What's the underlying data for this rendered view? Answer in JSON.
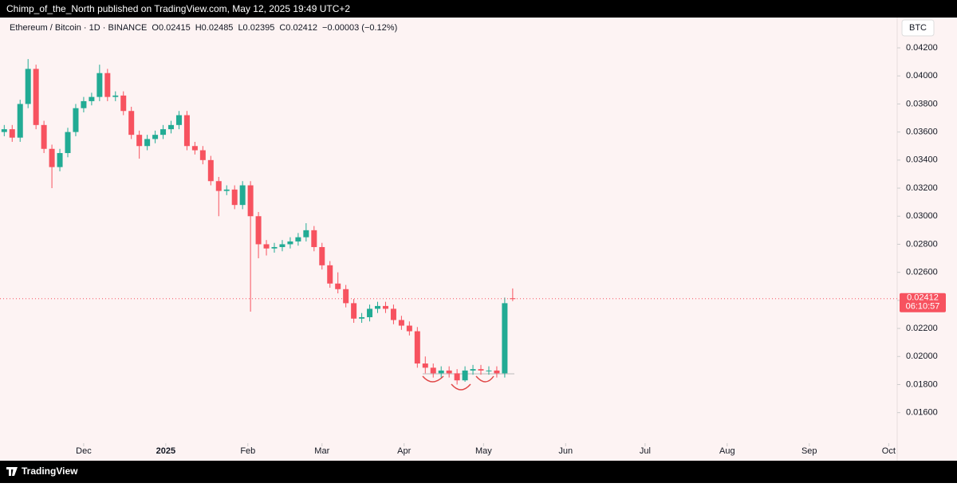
{
  "publish_note": "Chimp_of_the_North published on TradingView.com, May 12, 2025 19:49 UTC+2",
  "footer": "TradingView",
  "chart_data": {
    "type": "candlestick",
    "symbol": "Ethereum / Bitcoin · 1D · BINANCE",
    "ohlc_header": [
      "O0.02415",
      "H0.02485",
      "L0.02395",
      "C0.02412",
      "−0.00003 (−0.12%)"
    ],
    "currency": "BTC",
    "last_price": 0.02412,
    "countdown": "06:10:57",
    "up_color": "#22ab94",
    "down_color": "#f7525f",
    "x": [
      -30,
      -27,
      -24,
      -21,
      -18,
      -15,
      -12,
      -9,
      -6,
      -3,
      0,
      3,
      6,
      9,
      12,
      15,
      18,
      21,
      24,
      27,
      30,
      33,
      36,
      39,
      42,
      45,
      48,
      51,
      54,
      57,
      60,
      63,
      66,
      69,
      72,
      75,
      78,
      81,
      84,
      87,
      90,
      93,
      96,
      99,
      102,
      105,
      108,
      111,
      114,
      117,
      120,
      123,
      126,
      129,
      132,
      135,
      138,
      141,
      144,
      147,
      150,
      153,
      156,
      159,
      162
    ],
    "open": [
      0.036,
      0.0362,
      0.0356,
      0.038,
      0.0405,
      0.0365,
      0.0348,
      0.0335,
      0.0345,
      0.036,
      0.0377,
      0.0382,
      0.0385,
      0.0402,
      0.0385,
      0.0386,
      0.0375,
      0.0358,
      0.035,
      0.0355,
      0.0358,
      0.0362,
      0.0365,
      0.0372,
      0.035,
      0.0347,
      0.034,
      0.0325,
      0.0318,
      0.0319,
      0.0308,
      0.0322,
      0.03,
      0.028,
      0.0277,
      0.0278,
      0.028,
      0.0282,
      0.0285,
      0.029,
      0.0278,
      0.0265,
      0.0252,
      0.0248,
      0.0238,
      0.0227,
      0.0228,
      0.0234,
      0.0236,
      0.0234,
      0.0226,
      0.0222,
      0.0218,
      0.0195,
      0.0192,
      0.0188,
      0.019,
      0.0188,
      0.0183,
      0.019,
      0.0191,
      0.019,
      0.019,
      0.0188,
      0.02415
    ],
    "high": [
      0.0365,
      0.0365,
      0.0383,
      0.0412,
      0.0408,
      0.0368,
      0.0351,
      0.0348,
      0.0363,
      0.038,
      0.0385,
      0.0388,
      0.0408,
      0.0405,
      0.0389,
      0.0389,
      0.0378,
      0.0361,
      0.0358,
      0.0361,
      0.0365,
      0.0368,
      0.0375,
      0.0375,
      0.0353,
      0.035,
      0.0343,
      0.0328,
      0.0322,
      0.0322,
      0.0325,
      0.0325,
      0.0303,
      0.0283,
      0.0281,
      0.0283,
      0.0285,
      0.0288,
      0.0295,
      0.0293,
      0.0281,
      0.0268,
      0.026,
      0.0251,
      0.0241,
      0.0231,
      0.0237,
      0.0239,
      0.0239,
      0.0237,
      0.0229,
      0.0225,
      0.0221,
      0.02,
      0.0195,
      0.0193,
      0.0193,
      0.0191,
      0.0193,
      0.0194,
      0.0194,
      0.0193,
      0.0193,
      0.0242,
      0.02485
    ],
    "low": [
      0.0357,
      0.0353,
      0.0353,
      0.0377,
      0.0362,
      0.0345,
      0.032,
      0.0332,
      0.0342,
      0.0357,
      0.0374,
      0.0379,
      0.0382,
      0.0382,
      0.0382,
      0.0372,
      0.0355,
      0.0341,
      0.0347,
      0.0352,
      0.0355,
      0.0359,
      0.0362,
      0.0347,
      0.0344,
      0.0337,
      0.0322,
      0.03,
      0.0315,
      0.0305,
      0.0305,
      0.0232,
      0.027,
      0.0272,
      0.0274,
      0.0275,
      0.0277,
      0.0279,
      0.0282,
      0.0275,
      0.0262,
      0.0249,
      0.0245,
      0.0235,
      0.0224,
      0.0224,
      0.0225,
      0.0231,
      0.0231,
      0.0223,
      0.0219,
      0.0215,
      0.0192,
      0.0188,
      0.0185,
      0.0185,
      0.0185,
      0.018,
      0.0182,
      0.0187,
      0.0187,
      0.0187,
      0.0185,
      0.0185,
      0.02395
    ],
    "close": [
      0.0362,
      0.0356,
      0.038,
      0.0405,
      0.0365,
      0.0348,
      0.0335,
      0.0345,
      0.036,
      0.0377,
      0.0382,
      0.0385,
      0.0402,
      0.0385,
      0.0386,
      0.0375,
      0.0358,
      0.035,
      0.0355,
      0.0358,
      0.0362,
      0.0365,
      0.0372,
      0.035,
      0.0347,
      0.034,
      0.0325,
      0.0318,
      0.0319,
      0.0308,
      0.0322,
      0.03,
      0.028,
      0.0277,
      0.0278,
      0.028,
      0.0282,
      0.0285,
      0.029,
      0.0278,
      0.0265,
      0.0252,
      0.0248,
      0.0238,
      0.0227,
      0.0228,
      0.0234,
      0.0236,
      0.0234,
      0.0226,
      0.0222,
      0.0218,
      0.0195,
      0.0192,
      0.0188,
      0.019,
      0.0188,
      0.0183,
      0.019,
      0.0191,
      0.019,
      0.019,
      0.0188,
      0.0238,
      0.02412
    ],
    "xlim": [
      -31.6,
      307.2
    ],
    "xticks": [
      {
        "value": 0,
        "label": "Dec"
      },
      {
        "value": 31,
        "label": "2025"
      },
      {
        "value": 62,
        "label": "Feb"
      },
      {
        "value": 90,
        "label": "Mar"
      },
      {
        "value": 121,
        "label": "Apr"
      },
      {
        "value": 151,
        "label": "May"
      },
      {
        "value": 182,
        "label": "Jun"
      },
      {
        "value": 212,
        "label": "Jul"
      },
      {
        "value": 243,
        "label": "Aug"
      },
      {
        "value": 274,
        "label": "Sep"
      },
      {
        "value": 304,
        "label": "Oct"
      }
    ],
    "ylim": [
      0.01405,
      0.04416
    ],
    "yticks": [
      {
        "value": 0.016,
        "label": "0.01600"
      },
      {
        "value": 0.018,
        "label": "0.01800"
      },
      {
        "value": 0.02,
        "label": "0.02000"
      },
      {
        "value": 0.022,
        "label": "0.02200"
      },
      {
        "value": 0.024,
        "label": "0.02400"
      },
      {
        "value": 0.026,
        "label": "0.02600"
      },
      {
        "value": 0.028,
        "label": "0.02800"
      },
      {
        "value": 0.03,
        "label": "0.03000"
      },
      {
        "value": 0.032,
        "label": "0.03200"
      },
      {
        "value": 0.034,
        "label": "0.03400"
      },
      {
        "value": 0.036,
        "label": "0.03600"
      },
      {
        "value": 0.038,
        "label": "0.03800"
      },
      {
        "value": 0.04,
        "label": "0.04000"
      },
      {
        "value": 0.042,
        "label": "0.04200"
      }
    ]
  }
}
